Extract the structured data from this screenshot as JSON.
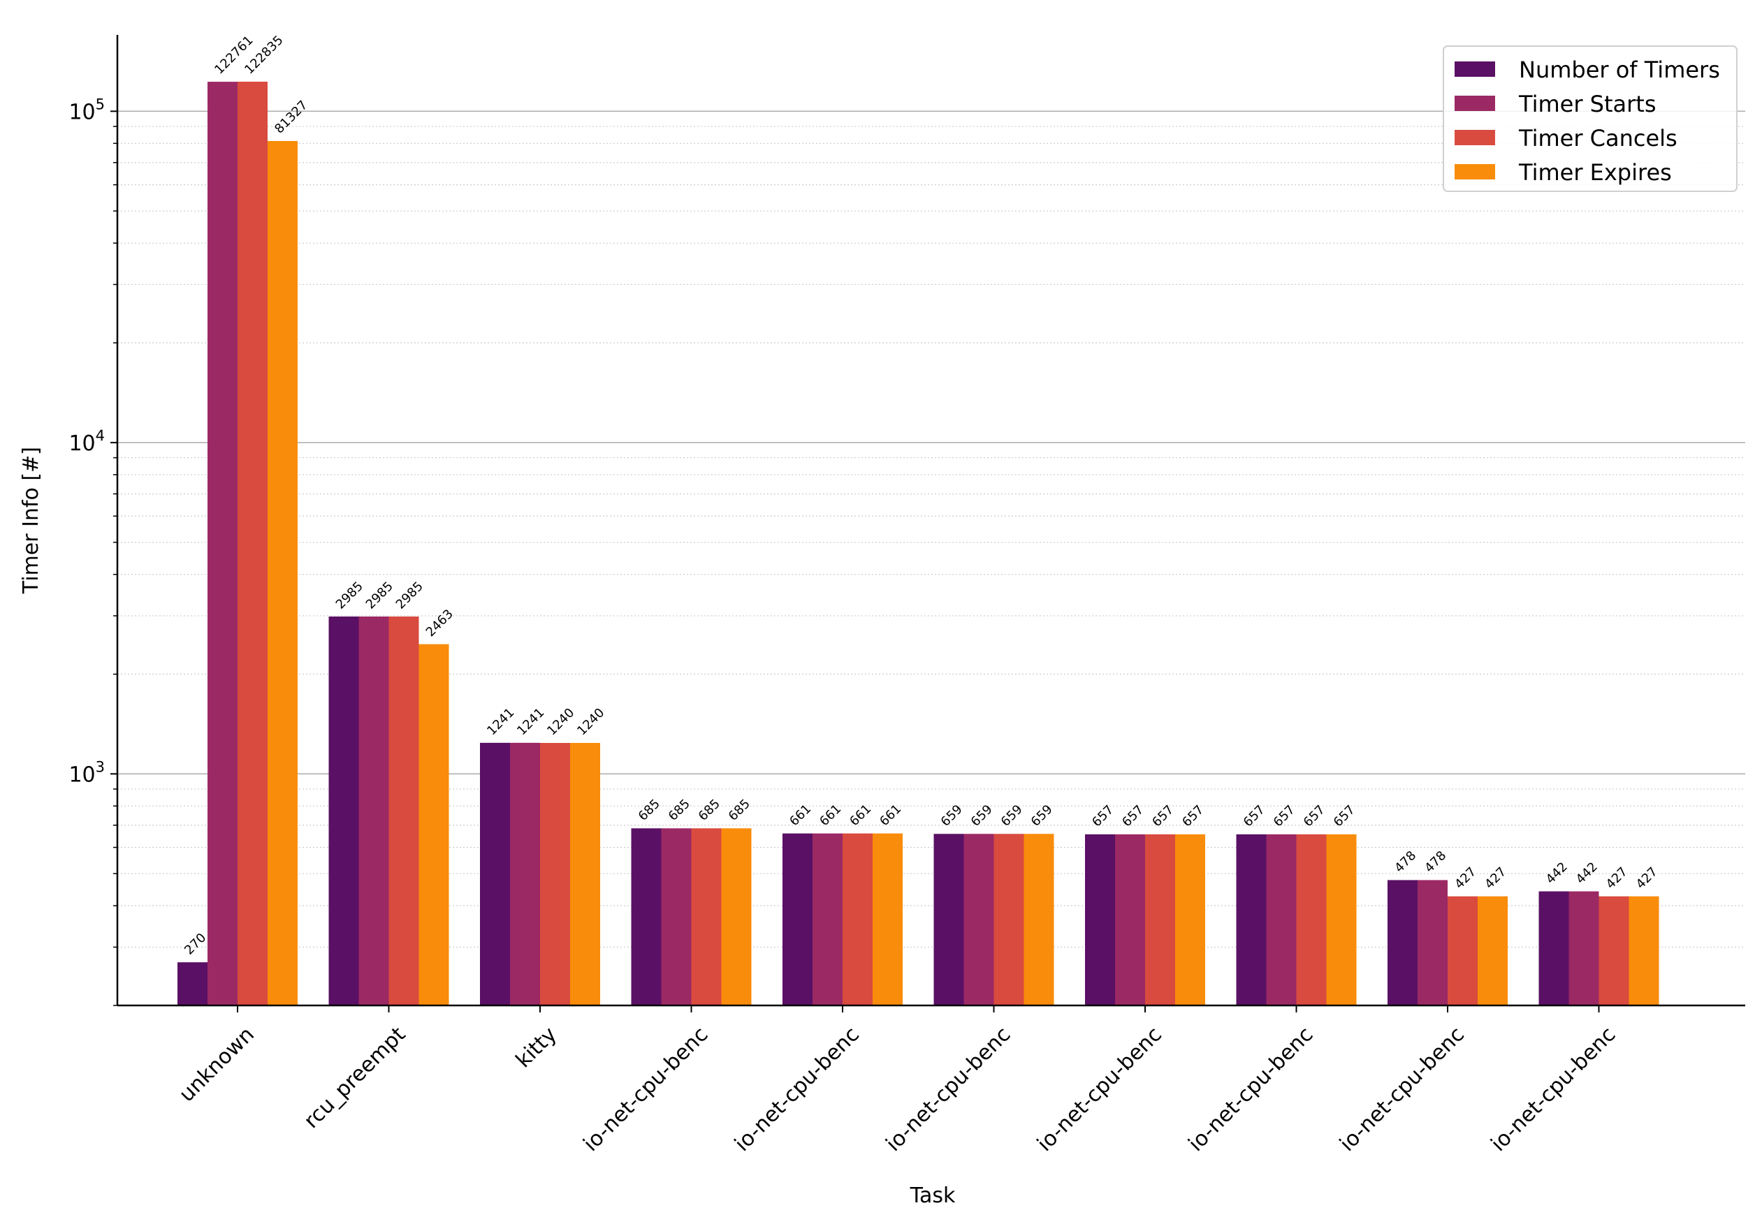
{
  "chart_data": {
    "type": "bar",
    "scale": "log",
    "xlabel": "Task",
    "ylabel": "Timer Info [#]",
    "ylim": [
      200,
      170000
    ],
    "y_ticks": [
      {
        "value": 1000,
        "base": "10",
        "exp": "3"
      },
      {
        "value": 10000,
        "base": "10",
        "exp": "4"
      },
      {
        "value": 100000,
        "base": "10",
        "exp": "5"
      }
    ],
    "categories": [
      "unknown",
      "rcu_preempt",
      "kitty",
      "io-net-cpu-benc",
      "io-net-cpu-benc",
      "io-net-cpu-benc",
      "io-net-cpu-benc",
      "io-net-cpu-benc",
      "io-net-cpu-benc",
      "io-net-cpu-benc"
    ],
    "series": [
      {
        "name": "Number of Timers",
        "color": "#5a1065",
        "values": [
          270,
          2985,
          1241,
          685,
          661,
          659,
          657,
          657,
          478,
          442
        ]
      },
      {
        "name": "Timer Starts",
        "color": "#9b2964",
        "values": [
          122761,
          2985,
          1241,
          685,
          661,
          659,
          657,
          657,
          478,
          442
        ]
      },
      {
        "name": "Timer Cancels",
        "color": "#d94b3f",
        "values": [
          122835,
          2985,
          1240,
          685,
          661,
          659,
          657,
          657,
          427,
          427
        ]
      },
      {
        "name": "Timer Expires",
        "color": "#f98c0a",
        "values": [
          81327,
          2463,
          1240,
          685,
          661,
          659,
          657,
          657,
          427,
          427
        ]
      }
    ],
    "grid": true,
    "legend_position": "top-right"
  }
}
